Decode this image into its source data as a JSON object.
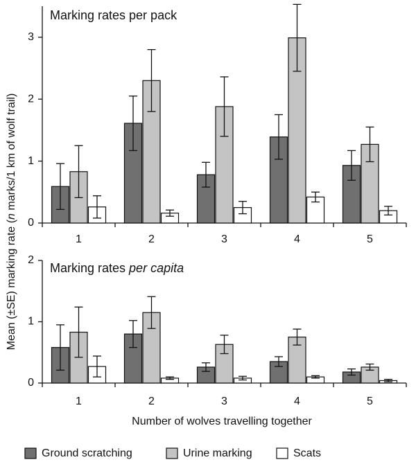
{
  "colors": {
    "ground_scratching": "#707070",
    "urine_marking": "#c4c4c4",
    "scats": "#ffffff",
    "outline": "#111111"
  },
  "figure": {
    "ylabel_pre": "Mean (±SE) marking rate (",
    "ylabel_italic": "n",
    "ylabel_post": " marks/1 km of wolf trail)",
    "xlabel": "Number of wolves travelling together"
  },
  "legend": [
    {
      "name": "Ground scratching",
      "color_key": "ground_scratching"
    },
    {
      "name": "Urine marking",
      "color_key": "urine_marking"
    },
    {
      "name": "Scats",
      "color_key": "scats"
    }
  ],
  "chart_data": [
    {
      "type": "bar",
      "title": "Marking rates per pack",
      "title_parts": [
        {
          "text": "Marking rates per pack",
          "italic": false
        }
      ],
      "categories": [
        "1",
        "2",
        "3",
        "4",
        "5"
      ],
      "ylim": [
        0,
        3.5
      ],
      "yticks": [
        0,
        1,
        2,
        3
      ],
      "grid": false,
      "legend_position": "bottom",
      "series": [
        {
          "name": "Ground scratching",
          "values": [
            0.59,
            1.61,
            0.78,
            1.39,
            0.93
          ],
          "se": [
            0.37,
            0.44,
            0.2,
            0.36,
            0.24
          ]
        },
        {
          "name": "Urine marking",
          "values": [
            0.83,
            2.3,
            1.88,
            2.99,
            1.27
          ],
          "se": [
            0.42,
            0.5,
            0.48,
            0.54,
            0.28
          ]
        },
        {
          "name": "Scats",
          "values": [
            0.26,
            0.16,
            0.25,
            0.42,
            0.2
          ],
          "se": [
            0.18,
            0.05,
            0.1,
            0.08,
            0.07
          ]
        }
      ]
    },
    {
      "type": "bar",
      "title": "Marking rates per capita",
      "title_parts": [
        {
          "text": "Marking rates ",
          "italic": false
        },
        {
          "text": "per capita",
          "italic": true
        }
      ],
      "categories": [
        "1",
        "2",
        "3",
        "4",
        "5"
      ],
      "ylim": [
        0,
        2
      ],
      "yticks": [
        0,
        1,
        2
      ],
      "grid": false,
      "legend_position": "bottom",
      "series": [
        {
          "name": "Ground scratching",
          "values": [
            0.58,
            0.8,
            0.26,
            0.35,
            0.18
          ],
          "se": [
            0.37,
            0.22,
            0.07,
            0.08,
            0.05
          ]
        },
        {
          "name": "Urine marking",
          "values": [
            0.83,
            1.15,
            0.63,
            0.75,
            0.26
          ],
          "se": [
            0.41,
            0.26,
            0.15,
            0.13,
            0.05
          ]
        },
        {
          "name": "Scats",
          "values": [
            0.27,
            0.08,
            0.08,
            0.1,
            0.04
          ],
          "se": [
            0.17,
            0.02,
            0.03,
            0.02,
            0.02
          ]
        }
      ]
    }
  ]
}
